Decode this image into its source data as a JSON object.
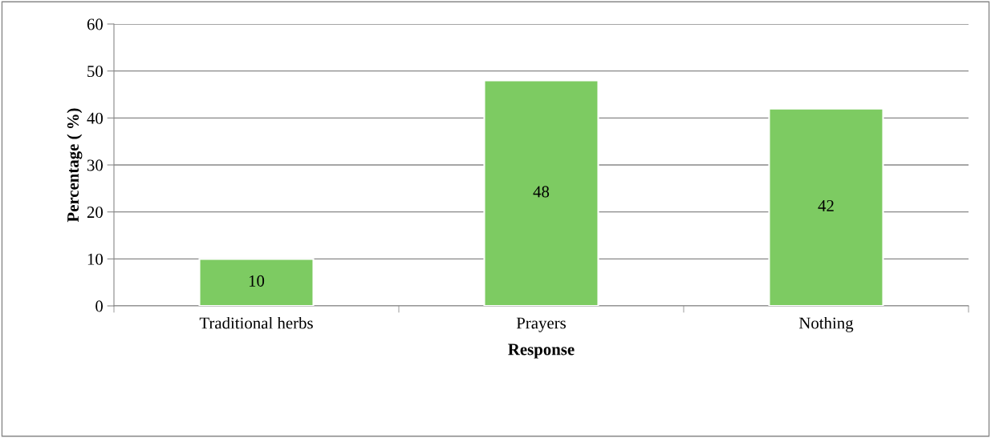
{
  "chart_data": {
    "type": "bar",
    "xlabel": "Response",
    "ylabel": "Percentage ( %)",
    "categories": [
      "Traditional herbs",
      "Prayers",
      "Nothing"
    ],
    "values": [
      10,
      48,
      42
    ],
    "color": "#7dcb62",
    "ylim": [
      0,
      60
    ],
    "yticks": [
      0,
      10,
      20,
      30,
      40,
      50,
      60
    ],
    "grid": "y",
    "data_labels": true,
    "legend": false
  }
}
